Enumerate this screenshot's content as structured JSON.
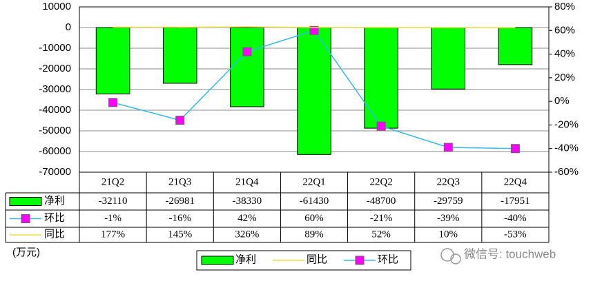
{
  "chart_data": {
    "type": "bar-line",
    "y_label": "(万元)",
    "watermark": "微信号: touchweb",
    "categories": [
      "21Q2",
      "21Q3",
      "21Q4",
      "22Q1",
      "22Q2",
      "22Q3",
      "22Q4"
    ],
    "series": [
      {
        "name": "净利",
        "type": "bar",
        "color": "#00ff00",
        "values": [
          -32110,
          -26981,
          -38330,
          -61430,
          -48700,
          -29759,
          -17951
        ]
      },
      {
        "name": "环比",
        "type": "line",
        "axis": "y2",
        "color": "#33bbee",
        "marker_color": "#ff00ff",
        "values": [
          -1,
          -16,
          42,
          60,
          -21,
          -39,
          -40
        ],
        "value_labels": [
          "-1%",
          "-16%",
          "42%",
          "60%",
          "-21%",
          "-39%",
          "-40%"
        ]
      },
      {
        "name": "同比",
        "type": "line",
        "color": "#f0d840",
        "values": [
          177,
          145,
          326,
          89,
          52,
          10,
          -53
        ],
        "value_labels": [
          "177%",
          "145%",
          "326%",
          "89%",
          "52%",
          "10%",
          "-53%"
        ]
      }
    ],
    "ylim": [
      -70000,
      10000
    ],
    "yticks": [
      10000,
      0,
      -10000,
      -20000,
      -30000,
      -40000,
      -50000,
      -60000,
      -70000
    ],
    "y2lim": [
      -60,
      80
    ],
    "y2ticks": [
      {
        "value": 80,
        "label": "80%"
      },
      {
        "value": 60,
        "label": "60%"
      },
      {
        "value": 40,
        "label": "40%"
      },
      {
        "value": 20,
        "label": "20%"
      },
      {
        "value": 0,
        "label": "0%"
      },
      {
        "value": -20,
        "label": "-20%"
      },
      {
        "value": -40,
        "label": "-40%"
      },
      {
        "value": -60,
        "label": "-60%"
      }
    ],
    "grid": true,
    "data_table": true,
    "legend": "bottom"
  }
}
